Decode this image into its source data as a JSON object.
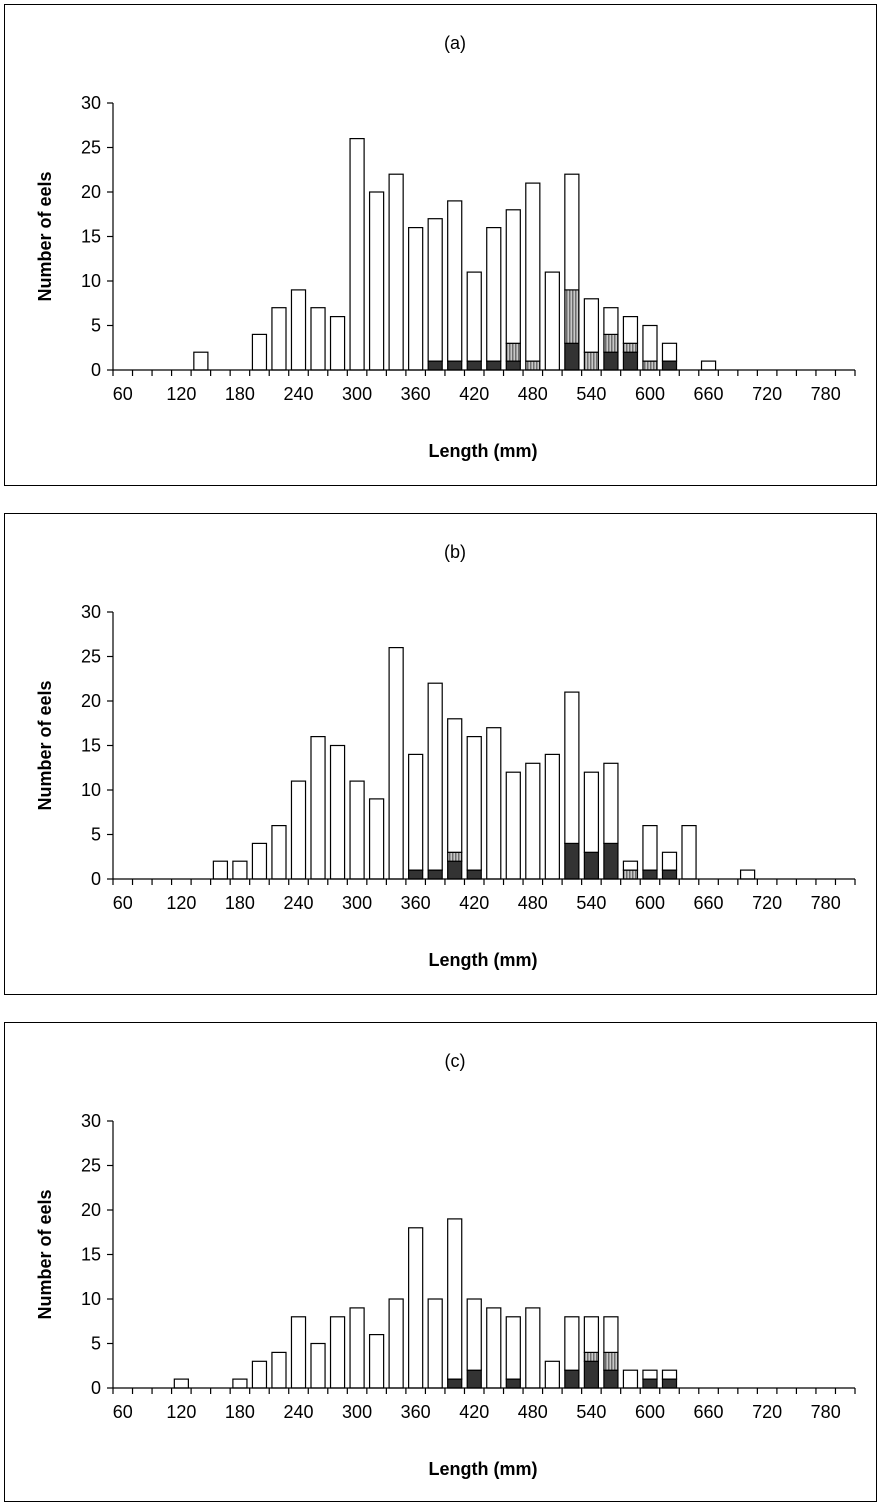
{
  "chart_data": [
    {
      "type": "bar",
      "stacked": true,
      "title": "(a)",
      "xlabel": "Length (mm)",
      "ylabel": "Number of eels",
      "ylim": [
        0,
        30
      ],
      "y_ticks": [
        0,
        5,
        10,
        15,
        20,
        25,
        30
      ],
      "x_tick_labels": [
        "60",
        "120",
        "180",
        "240",
        "300",
        "360",
        "420",
        "480",
        "540",
        "600",
        "660",
        "720",
        "780"
      ],
      "grid": false,
      "legend": "none",
      "bin_width_mm": 20,
      "x": [
        60,
        80,
        100,
        120,
        140,
        160,
        180,
        200,
        220,
        240,
        260,
        280,
        300,
        320,
        340,
        360,
        380,
        400,
        420,
        440,
        460,
        480,
        500,
        520,
        540,
        560,
        580,
        600,
        620,
        640,
        660,
        680,
        700,
        720,
        740,
        760,
        780,
        800
      ],
      "series": [
        {
          "values": [
            0,
            0,
            0,
            0,
            0,
            0,
            0,
            0,
            0,
            0,
            0,
            0,
            0,
            0,
            0,
            0,
            1,
            1,
            1,
            1,
            1,
            0,
            0,
            3,
            0,
            2,
            2,
            0,
            1,
            0,
            0,
            0,
            0,
            0,
            0,
            0,
            0,
            0
          ],
          "color": "#333333"
        },
        {
          "values": [
            0,
            0,
            0,
            0,
            0,
            0,
            0,
            0,
            0,
            0,
            0,
            0,
            0,
            0,
            0,
            0,
            0,
            0,
            0,
            0,
            2,
            1,
            0,
            6,
            2,
            2,
            1,
            1,
            0,
            0,
            0,
            0,
            0,
            0,
            0,
            0,
            0,
            0
          ],
          "color": "#9a9a9a"
        },
        {
          "values": [
            0,
            0,
            0,
            0,
            2,
            0,
            0,
            4,
            7,
            9,
            7,
            6,
            26,
            20,
            22,
            16,
            16,
            18,
            10,
            15,
            15,
            20,
            11,
            13,
            6,
            3,
            3,
            4,
            2,
            0,
            1,
            0,
            0,
            0,
            0,
            0,
            0,
            0
          ],
          "color": "#ffffff"
        }
      ]
    },
    {
      "type": "bar",
      "stacked": true,
      "title": "(b)",
      "xlabel": "Length (mm)",
      "ylabel": "Number of eels",
      "ylim": [
        0,
        30
      ],
      "y_ticks": [
        0,
        5,
        10,
        15,
        20,
        25,
        30
      ],
      "x_tick_labels": [
        "60",
        "120",
        "180",
        "240",
        "300",
        "360",
        "420",
        "480",
        "540",
        "600",
        "660",
        "720",
        "780"
      ],
      "grid": false,
      "legend": "none",
      "bin_width_mm": 20,
      "x": [
        60,
        80,
        100,
        120,
        140,
        160,
        180,
        200,
        220,
        240,
        260,
        280,
        300,
        320,
        340,
        360,
        380,
        400,
        420,
        440,
        460,
        480,
        500,
        520,
        540,
        560,
        580,
        600,
        620,
        640,
        660,
        680,
        700,
        720,
        740,
        760,
        780,
        800
      ],
      "series": [
        {
          "values": [
            0,
            0,
            0,
            0,
            0,
            0,
            0,
            0,
            0,
            0,
            0,
            0,
            0,
            0,
            0,
            1,
            1,
            2,
            1,
            0,
            0,
            0,
            0,
            4,
            3,
            4,
            0,
            1,
            1,
            0,
            0,
            0,
            0,
            0,
            0,
            0,
            0,
            0
          ],
          "color": "#333333"
        },
        {
          "values": [
            0,
            0,
            0,
            0,
            0,
            0,
            0,
            0,
            0,
            0,
            0,
            0,
            0,
            0,
            0,
            0,
            0,
            1,
            0,
            0,
            0,
            0,
            0,
            0,
            0,
            0,
            1,
            0,
            0,
            0,
            0,
            0,
            0,
            0,
            0,
            0,
            0,
            0
          ],
          "color": "#9a9a9a"
        },
        {
          "values": [
            0,
            0,
            0,
            0,
            0,
            2,
            2,
            4,
            6,
            11,
            16,
            15,
            11,
            9,
            26,
            13,
            21,
            15,
            15,
            17,
            12,
            13,
            14,
            17,
            9,
            9,
            1,
            5,
            2,
            6,
            0,
            0,
            1,
            0,
            0,
            0,
            0,
            0
          ],
          "color": "#ffffff"
        }
      ]
    },
    {
      "type": "bar",
      "stacked": true,
      "title": "(c)",
      "xlabel": "Length (mm)",
      "ylabel": "Number of eels",
      "ylim": [
        0,
        30
      ],
      "y_ticks": [
        0,
        5,
        10,
        15,
        20,
        25,
        30
      ],
      "x_tick_labels": [
        "60",
        "120",
        "180",
        "240",
        "300",
        "360",
        "420",
        "480",
        "540",
        "600",
        "660",
        "720",
        "780"
      ],
      "grid": false,
      "legend": "none",
      "bin_width_mm": 20,
      "x": [
        60,
        80,
        100,
        120,
        140,
        160,
        180,
        200,
        220,
        240,
        260,
        280,
        300,
        320,
        340,
        360,
        380,
        400,
        420,
        440,
        460,
        480,
        500,
        520,
        540,
        560,
        580,
        600,
        620,
        640,
        660,
        680,
        700,
        720,
        740,
        760,
        780,
        800
      ],
      "series": [
        {
          "values": [
            0,
            0,
            0,
            0,
            0,
            0,
            0,
            0,
            0,
            0,
            0,
            0,
            0,
            0,
            0,
            0,
            0,
            1,
            2,
            0,
            1,
            0,
            0,
            2,
            3,
            2,
            0,
            1,
            1,
            0,
            0,
            0,
            0,
            0,
            0,
            0,
            0,
            0
          ],
          "color": "#333333"
        },
        {
          "values": [
            0,
            0,
            0,
            0,
            0,
            0,
            0,
            0,
            0,
            0,
            0,
            0,
            0,
            0,
            0,
            0,
            0,
            0,
            0,
            0,
            0,
            0,
            0,
            0,
            1,
            2,
            0,
            0,
            0,
            0,
            0,
            0,
            0,
            0,
            0,
            0,
            0,
            0
          ],
          "color": "#9a9a9a"
        },
        {
          "values": [
            0,
            0,
            0,
            1,
            0,
            0,
            1,
            3,
            4,
            8,
            5,
            8,
            9,
            6,
            10,
            18,
            10,
            18,
            8,
            9,
            7,
            9,
            3,
            6,
            4,
            4,
            2,
            1,
            1,
            0,
            0,
            0,
            0,
            0,
            0,
            0,
            0,
            0
          ],
          "color": "#ffffff"
        }
      ]
    }
  ]
}
